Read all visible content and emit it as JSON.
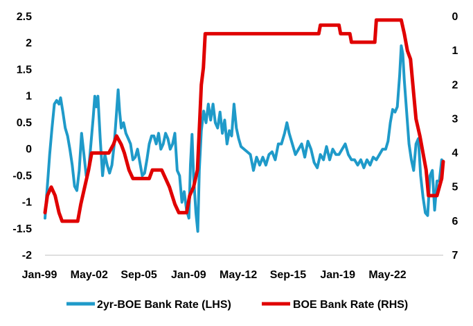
{
  "chart_data": {
    "type": "line",
    "title": "",
    "xlabel": "",
    "ylabel_left": "",
    "ylabel_right": "",
    "grid": false,
    "legend_position": "bottom",
    "x_range": [
      1999.0,
      2024.6
    ],
    "x_tick_labels": [
      "Jan-99",
      "May-02",
      "Sep-05",
      "Jan-09",
      "May-12",
      "Sep-15",
      "Jan-19",
      "May-22"
    ],
    "y_left": {
      "range": [
        -2,
        2.5
      ],
      "ticks": [
        2.5,
        2,
        1.5,
        1,
        0.5,
        0,
        -0.5,
        -1,
        -1.5,
        -2
      ],
      "tick_labels": [
        "2.5",
        "2",
        "1.5",
        "1",
        "0.5",
        "0",
        "-0.5",
        "-1",
        "-1.5",
        "-2"
      ]
    },
    "y_right": {
      "range": [
        0,
        7
      ],
      "inverted": true,
      "ticks": [
        0,
        1,
        2,
        3,
        4,
        5,
        6,
        7
      ],
      "tick_labels": [
        "0",
        "1",
        "2",
        "3",
        "4",
        "5",
        "6",
        "7"
      ]
    },
    "series": [
      {
        "name": "2yr-BOE Bank Rate (LHS)",
        "axis": "left",
        "color": "#1f9ac9",
        "points": [
          [
            1999.0,
            -1.3
          ],
          [
            1999.1,
            -0.9
          ],
          [
            1999.2,
            -0.5
          ],
          [
            1999.3,
            -0.1
          ],
          [
            1999.45,
            0.4
          ],
          [
            1999.6,
            0.85
          ],
          [
            1999.75,
            0.92
          ],
          [
            1999.9,
            0.85
          ],
          [
            2000.0,
            0.97
          ],
          [
            2000.15,
            0.7
          ],
          [
            2000.3,
            0.4
          ],
          [
            2000.45,
            0.25
          ],
          [
            2000.6,
            0.0
          ],
          [
            2000.75,
            -0.3
          ],
          [
            2000.9,
            -0.7
          ],
          [
            2001.05,
            -0.78
          ],
          [
            2001.2,
            -0.4
          ],
          [
            2001.35,
            0.3
          ],
          [
            2001.5,
            -0.1
          ],
          [
            2001.65,
            -0.5
          ],
          [
            2001.8,
            -0.4
          ],
          [
            2001.95,
            0.1
          ],
          [
            2002.1,
            0.6
          ],
          [
            2002.2,
            1.0
          ],
          [
            2002.3,
            0.8
          ],
          [
            2002.4,
            1.0
          ],
          [
            2002.55,
            0.2
          ],
          [
            2002.7,
            -0.5
          ],
          [
            2002.85,
            -0.1
          ],
          [
            2003.0,
            -0.3
          ],
          [
            2003.15,
            -0.45
          ],
          [
            2003.3,
            -0.3
          ],
          [
            2003.45,
            0.1
          ],
          [
            2003.6,
            0.7
          ],
          [
            2003.7,
            1.12
          ],
          [
            2003.8,
            0.7
          ],
          [
            2003.9,
            0.4
          ],
          [
            2004.05,
            0.5
          ],
          [
            2004.2,
            0.3
          ],
          [
            2004.35,
            0.2
          ],
          [
            2004.5,
            0.1
          ],
          [
            2004.65,
            -0.2
          ],
          [
            2004.8,
            -0.15
          ],
          [
            2004.95,
            0.0
          ],
          [
            2005.1,
            -0.25
          ],
          [
            2005.25,
            -0.5
          ],
          [
            2005.4,
            -0.45
          ],
          [
            2005.55,
            -0.2
          ],
          [
            2005.7,
            0.1
          ],
          [
            2005.85,
            0.25
          ],
          [
            2006.0,
            0.25
          ],
          [
            2006.15,
            0.1
          ],
          [
            2006.3,
            0.3
          ],
          [
            2006.45,
            0.0
          ],
          [
            2006.6,
            0.1
          ],
          [
            2006.75,
            0.3
          ],
          [
            2006.9,
            0.2
          ],
          [
            2007.05,
            0.0
          ],
          [
            2007.2,
            0.1
          ],
          [
            2007.35,
            0.3
          ],
          [
            2007.5,
            -0.4
          ],
          [
            2007.65,
            -0.5
          ],
          [
            2007.8,
            -1.0
          ],
          [
            2007.95,
            -0.8
          ],
          [
            2008.1,
            -1.15
          ],
          [
            2008.25,
            -1.3
          ],
          [
            2008.35,
            -0.3
          ],
          [
            2008.45,
            0.28
          ],
          [
            2008.55,
            -0.5
          ],
          [
            2008.7,
            -1.2
          ],
          [
            2008.82,
            -1.55
          ],
          [
            2008.92,
            -0.4
          ],
          [
            2009.05,
            0.35
          ],
          [
            2009.2,
            0.72
          ],
          [
            2009.35,
            0.5
          ],
          [
            2009.5,
            0.85
          ],
          [
            2009.65,
            0.55
          ],
          [
            2009.8,
            0.85
          ],
          [
            2009.95,
            0.5
          ],
          [
            2010.1,
            0.4
          ],
          [
            2010.25,
            0.7
          ],
          [
            2010.4,
            0.3
          ],
          [
            2010.55,
            0.55
          ],
          [
            2010.7,
            0.1
          ],
          [
            2010.85,
            0.35
          ],
          [
            2011.0,
            0.25
          ],
          [
            2011.15,
            0.85
          ],
          [
            2011.3,
            0.4
          ],
          [
            2011.45,
            0.2
          ],
          [
            2011.6,
            0.05
          ],
          [
            2011.8,
            0.0
          ],
          [
            2012.0,
            -0.05
          ],
          [
            2012.2,
            -0.1
          ],
          [
            2012.4,
            -0.4
          ],
          [
            2012.6,
            -0.15
          ],
          [
            2012.8,
            -0.3
          ],
          [
            2013.0,
            -0.15
          ],
          [
            2013.2,
            -0.3
          ],
          [
            2013.4,
            -0.1
          ],
          [
            2013.6,
            -0.05
          ],
          [
            2013.8,
            -0.2
          ],
          [
            2014.0,
            0.1
          ],
          [
            2014.2,
            0.1
          ],
          [
            2014.4,
            0.3
          ],
          [
            2014.55,
            0.5
          ],
          [
            2014.7,
            0.3
          ],
          [
            2014.9,
            0.1
          ],
          [
            2015.1,
            -0.1
          ],
          [
            2015.3,
            0.0
          ],
          [
            2015.5,
            0.1
          ],
          [
            2015.7,
            -0.15
          ],
          [
            2015.9,
            0.15
          ],
          [
            2016.1,
            0.0
          ],
          [
            2016.3,
            -0.25
          ],
          [
            2016.5,
            -0.35
          ],
          [
            2016.7,
            -0.1
          ],
          [
            2016.9,
            -0.2
          ],
          [
            2017.1,
            0.05
          ],
          [
            2017.3,
            -0.2
          ],
          [
            2017.5,
            0.0
          ],
          [
            2017.7,
            -0.1
          ],
          [
            2017.9,
            -0.1
          ],
          [
            2018.1,
            0.0
          ],
          [
            2018.3,
            0.1
          ],
          [
            2018.5,
            -0.1
          ],
          [
            2018.7,
            -0.2
          ],
          [
            2018.9,
            -0.2
          ],
          [
            2019.1,
            -0.3
          ],
          [
            2019.3,
            -0.2
          ],
          [
            2019.5,
            -0.35
          ],
          [
            2019.7,
            -0.2
          ],
          [
            2019.9,
            -0.3
          ],
          [
            2020.1,
            -0.15
          ],
          [
            2020.3,
            -0.2
          ],
          [
            2020.5,
            -0.1
          ],
          [
            2020.7,
            0.0
          ],
          [
            2020.9,
            0.0
          ],
          [
            2021.05,
            0.15
          ],
          [
            2021.2,
            0.5
          ],
          [
            2021.35,
            0.75
          ],
          [
            2021.5,
            0.7
          ],
          [
            2021.65,
            0.8
          ],
          [
            2021.8,
            1.4
          ],
          [
            2021.9,
            1.95
          ],
          [
            2022.0,
            1.8
          ],
          [
            2022.1,
            1.3
          ],
          [
            2022.25,
            0.7
          ],
          [
            2022.4,
            0.1
          ],
          [
            2022.55,
            -0.2
          ],
          [
            2022.7,
            -0.4
          ],
          [
            2022.85,
            0.1
          ],
          [
            2023.0,
            0.2
          ],
          [
            2023.15,
            -0.5
          ],
          [
            2023.3,
            -0.9
          ],
          [
            2023.45,
            -1.2
          ],
          [
            2023.6,
            -1.25
          ],
          [
            2023.75,
            -0.5
          ],
          [
            2023.9,
            -0.4
          ],
          [
            2024.05,
            -1.15
          ],
          [
            2024.2,
            -0.6
          ],
          [
            2024.35,
            -0.6
          ],
          [
            2024.5,
            -0.2
          ]
        ]
      },
      {
        "name": "BOE Bank Rate (RHS)",
        "axis": "right",
        "color": "#e00000",
        "points": [
          [
            1999.0,
            5.75
          ],
          [
            1999.15,
            5.25
          ],
          [
            1999.4,
            5.0
          ],
          [
            1999.65,
            5.25
          ],
          [
            1999.9,
            5.75
          ],
          [
            2000.1,
            6.0
          ],
          [
            2001.1,
            6.0
          ],
          [
            2001.3,
            5.5
          ],
          [
            2001.55,
            5.0
          ],
          [
            2001.8,
            4.5
          ],
          [
            2002.0,
            4.0
          ],
          [
            2003.1,
            4.0
          ],
          [
            2003.4,
            3.75
          ],
          [
            2003.6,
            3.5
          ],
          [
            2003.9,
            3.75
          ],
          [
            2004.1,
            4.0
          ],
          [
            2004.4,
            4.5
          ],
          [
            2004.65,
            4.75
          ],
          [
            2005.7,
            4.75
          ],
          [
            2005.9,
            4.5
          ],
          [
            2006.5,
            4.5
          ],
          [
            2006.75,
            4.75
          ],
          [
            2007.0,
            5.0
          ],
          [
            2007.35,
            5.5
          ],
          [
            2007.6,
            5.75
          ],
          [
            2008.1,
            5.75
          ],
          [
            2008.3,
            5.25
          ],
          [
            2008.55,
            5.0
          ],
          [
            2008.8,
            4.5
          ],
          [
            2008.95,
            3.0
          ],
          [
            2009.05,
            2.0
          ],
          [
            2009.18,
            1.5
          ],
          [
            2009.3,
            0.5
          ],
          [
            2016.6,
            0.5
          ],
          [
            2016.7,
            0.25
          ],
          [
            2017.9,
            0.25
          ],
          [
            2018.0,
            0.5
          ],
          [
            2018.6,
            0.5
          ],
          [
            2018.7,
            0.75
          ],
          [
            2020.2,
            0.75
          ],
          [
            2020.3,
            0.1
          ],
          [
            2021.9,
            0.1
          ],
          [
            2022.1,
            0.5
          ],
          [
            2022.3,
            1.0
          ],
          [
            2022.5,
            1.25
          ],
          [
            2022.7,
            2.25
          ],
          [
            2022.85,
            3.0
          ],
          [
            2023.1,
            3.5
          ],
          [
            2023.3,
            4.0
          ],
          [
            2023.5,
            4.5
          ],
          [
            2023.65,
            5.25
          ],
          [
            2024.2,
            5.25
          ],
          [
            2024.35,
            5.0
          ],
          [
            2024.5,
            4.75
          ],
          [
            2024.6,
            4.25
          ]
        ]
      }
    ]
  }
}
